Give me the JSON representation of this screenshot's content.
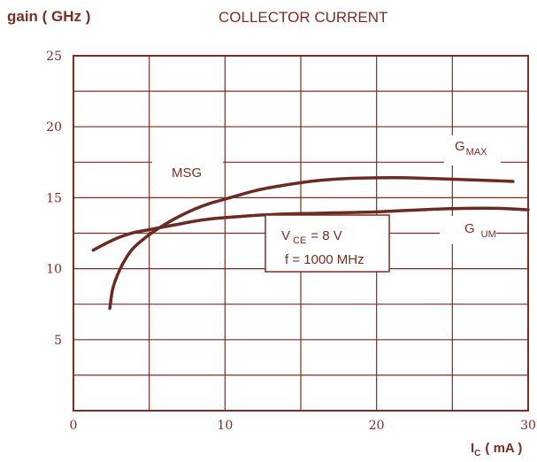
{
  "header": {
    "ylabel": "gain (  GHz )",
    "title": "COLLECTOR CURRENT"
  },
  "colors": {
    "ink": "#7a2e22",
    "curve": "#6b2a22",
    "background": "#ffffff"
  },
  "chart_data": {
    "type": "line",
    "title": "COLLECTOR CURRENT",
    "ylabel": "gain (  GHz )",
    "xlabel": {
      "main": "I",
      "sub": "C",
      "rest": "(  mA )"
    },
    "xlim": [
      0,
      30
    ],
    "ylim": [
      0,
      25
    ],
    "x_ticks": [
      0,
      10,
      20,
      30
    ],
    "x_tick_labels": [
      "0",
      "10",
      "20",
      "30"
    ],
    "y_ticks": [
      5,
      10,
      15,
      20,
      25
    ],
    "y_tick_labels": [
      "5",
      "10",
      "15",
      "20",
      "25"
    ],
    "grid": true,
    "series": [
      {
        "name": "MSG / G MAX",
        "x": [
          2.4,
          2.6,
          3.0,
          3.5,
          4.0,
          5.0,
          6.0,
          7.0,
          8.0,
          9.0,
          10.0,
          12.0,
          14.0,
          16.0,
          18.0,
          20.0,
          22.0,
          25.0,
          28.0,
          29.0
        ],
        "y": [
          7.2,
          8.6,
          9.8,
          10.8,
          11.5,
          12.4,
          13.1,
          13.7,
          14.2,
          14.6,
          14.9,
          15.5,
          15.9,
          16.2,
          16.35,
          16.4,
          16.4,
          16.3,
          16.2,
          16.15
        ]
      },
      {
        "name": "G UM",
        "x": [
          1.3,
          2.0,
          3.0,
          4.0,
          5.0,
          6.0,
          7.0,
          8.0,
          9.0,
          10.0,
          12.0,
          14.0,
          16.0,
          18.0,
          20.0,
          22.0,
          24.0,
          26.0,
          28.0,
          30.0
        ],
        "y": [
          11.3,
          11.7,
          12.2,
          12.55,
          12.75,
          12.95,
          13.15,
          13.35,
          13.5,
          13.6,
          13.75,
          13.85,
          13.9,
          13.95,
          14.0,
          14.1,
          14.2,
          14.25,
          14.25,
          14.15
        ]
      }
    ],
    "annotations": {
      "msg": "MSG",
      "gmax": {
        "main": "G",
        "sub": "MAX"
      },
      "gum": {
        "main": "G",
        "sub": "UM"
      },
      "conditions": {
        "vce_main": "V",
        "vce_sub": "CE",
        "vce_rest": "=  8  V",
        "freq": "f = 1000  MHz"
      }
    }
  }
}
